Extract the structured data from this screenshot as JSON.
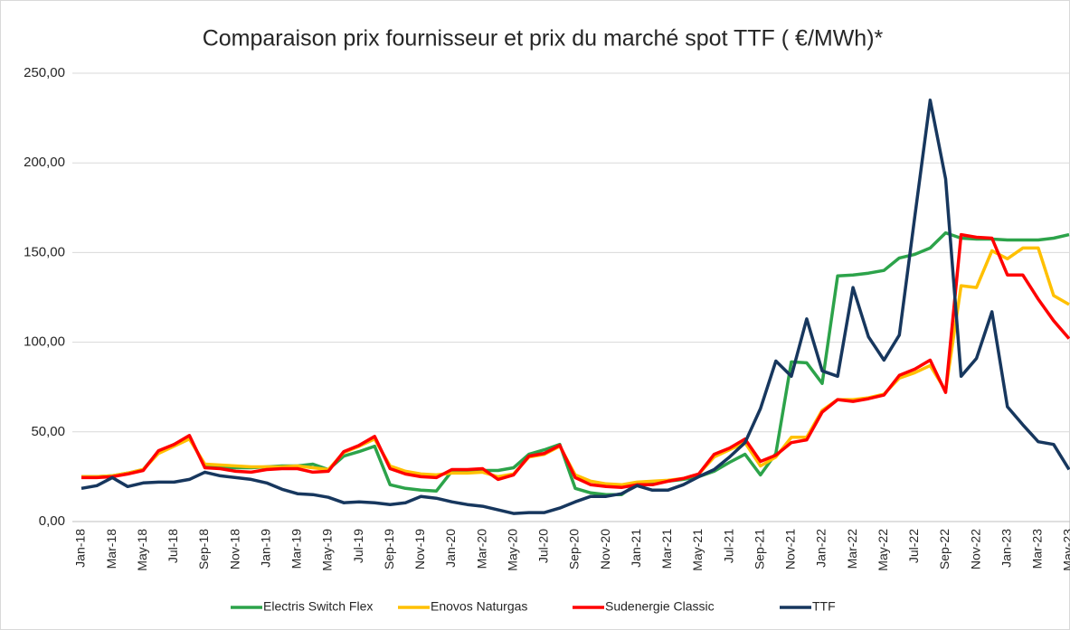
{
  "chart_data": {
    "type": "line",
    "title": "Comparaison prix fournisseur et prix du marché spot TTF ( €/MWh)*",
    "categories": [
      "Jan-18",
      null,
      "Mar-18",
      null,
      "May-18",
      null,
      "Jul-18",
      null,
      "Sep-18",
      null,
      "Nov-18",
      null,
      "Jan-19",
      null,
      "Mar-19",
      null,
      "May-19",
      null,
      "Jul-19",
      null,
      "Sep-19",
      null,
      "Nov-19",
      null,
      "Jan-20",
      null,
      "Mar-20",
      null,
      "May-20",
      null,
      "Jul-20",
      null,
      "Sep-20",
      null,
      "Nov-20",
      null,
      "Jan-21",
      null,
      "Mar-21",
      null,
      "May-21",
      null,
      "Jul-21",
      null,
      "Sep-21",
      null,
      "Nov-21",
      null,
      "Jan-22",
      null,
      "Mar-22",
      null,
      "May-22",
      null,
      "Jul-22",
      null,
      "Sep-22",
      null,
      "Nov-22",
      null,
      "Jan-23",
      null,
      "Mar-23",
      null,
      "May-23"
    ],
    "series": [
      {
        "name": "Electris Switch Flex",
        "color": "#2ca34a",
        "values": [
          25,
          25,
          25.5,
          27,
          29,
          39,
          43,
          47,
          31,
          30.5,
          30,
          30,
          30.5,
          31,
          31,
          32,
          29,
          36.5,
          39,
          42,
          20.5,
          18.5,
          17.5,
          17,
          28,
          28,
          28.5,
          28.5,
          30,
          37.5,
          40,
          43,
          18.5,
          16,
          15,
          15,
          21,
          21.5,
          22.5,
          23.5,
          25,
          28,
          33,
          37.5,
          26,
          38,
          89,
          88.5,
          77,
          137,
          137.5,
          138.5,
          140,
          147,
          149,
          152.5,
          161,
          158,
          157.5,
          157.5,
          157,
          157,
          157,
          158,
          160
        ]
      },
      {
        "name": "Enovos Naturgas",
        "color": "#ffc000",
        "values": [
          25,
          25,
          25.5,
          27,
          29,
          38,
          42,
          46,
          32,
          31.5,
          31,
          30.5,
          30.5,
          30.5,
          31,
          30,
          29,
          38.5,
          42,
          46,
          31,
          28,
          26.5,
          26,
          27,
          27,
          27.5,
          25,
          26.5,
          36,
          37.5,
          42,
          26,
          22.5,
          21,
          20.5,
          22,
          22.5,
          23,
          24,
          26.5,
          36,
          40,
          44,
          31,
          36,
          47,
          47,
          62,
          68,
          68,
          69,
          71,
          80,
          83,
          87,
          73,
          131.5,
          130.5,
          151,
          146.5,
          152.5,
          152.5,
          126,
          121
        ]
      },
      {
        "name": "Sudenergie Classic",
        "color": "#ff0000",
        "values": [
          24.5,
          24.5,
          25,
          26.5,
          28.5,
          39.5,
          43,
          48,
          30,
          29.5,
          28,
          27.5,
          29,
          29.5,
          29.5,
          27.5,
          28,
          39,
          42.5,
          47.5,
          29.5,
          26.5,
          25,
          24.5,
          29,
          29,
          29.5,
          23.5,
          26,
          36.5,
          38,
          42.5,
          24.5,
          20.5,
          19.5,
          19,
          20.5,
          20.5,
          22.5,
          24,
          26.5,
          37.5,
          41,
          46,
          33.5,
          37,
          44,
          45.5,
          61,
          68,
          67,
          68.5,
          70.5,
          81.5,
          85,
          90,
          72,
          160,
          158.5,
          158,
          137.5,
          137.5,
          124,
          112,
          102
        ]
      },
      {
        "name": "TTF",
        "color": "#17375e",
        "values": [
          18.5,
          20,
          24.5,
          19.5,
          21.5,
          22,
          22,
          23.5,
          27.5,
          25.5,
          24.5,
          23.5,
          21.5,
          18,
          15.5,
          15,
          13.5,
          10.5,
          11,
          10.5,
          9.5,
          10.5,
          14,
          13,
          11,
          9.5,
          8.5,
          6.5,
          4.5,
          5,
          5,
          7.5,
          11,
          14,
          14,
          15.5,
          20,
          17.5,
          17.5,
          20.5,
          25,
          29,
          36,
          44,
          63,
          89.5,
          81,
          113,
          84,
          81,
          130.5,
          103,
          90,
          104,
          170,
          235,
          191,
          81,
          91,
          117,
          64,
          54,
          44.5,
          43,
          29
        ]
      }
    ],
    "ylim": [
      0,
      250
    ],
    "yticks": [
      {
        "value": 0,
        "label": "0,00"
      },
      {
        "value": 50,
        "label": "50,00"
      },
      {
        "value": 100,
        "label": "100,00"
      },
      {
        "value": 150,
        "label": "150,00"
      },
      {
        "value": 200,
        "label": "200,00"
      },
      {
        "value": 250,
        "label": "250,00"
      }
    ],
    "grid": true,
    "legend": "bottom"
  }
}
